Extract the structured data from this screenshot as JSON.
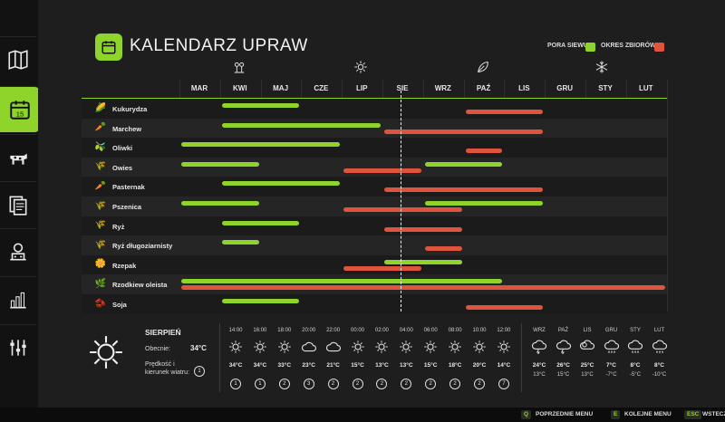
{
  "title": "KALENDARZ UPRAW",
  "legend": {
    "sow": "PORA SIEWU",
    "harvest": "OKRES ZBIORÓW",
    "sow_color": "#8fd42a",
    "harvest_color": "#e0533c"
  },
  "months": [
    "MAR",
    "KWI",
    "MAJ",
    "CZE",
    "LIP",
    "SIE",
    "WRZ",
    "PAŹ",
    "LIS",
    "GRU",
    "STY",
    "LUT"
  ],
  "seasons": [
    "spring-flower-icon",
    "summer-sun-icon",
    "autumn-leaf-icon",
    "winter-snowflake-icon"
  ],
  "crops": [
    {
      "name": "Kukurydza",
      "icon": "corn-icon",
      "glyph": "🌽",
      "sow": [
        [
          2,
          3
        ]
      ],
      "harvest": [
        [
          8,
          9
        ]
      ]
    },
    {
      "name": "Marchew",
      "icon": "carrot-icon",
      "glyph": "🥕",
      "sow": [
        [
          2,
          5
        ]
      ],
      "harvest": [
        [
          6,
          9
        ]
      ]
    },
    {
      "name": "Oliwki",
      "icon": "olive-icon",
      "glyph": "🫒",
      "sow": [
        [
          1,
          4
        ]
      ],
      "harvest": [
        [
          8,
          8
        ]
      ]
    },
    {
      "name": "Owies",
      "icon": "oat-icon",
      "glyph": "🌾",
      "sow": [
        [
          1,
          2
        ],
        [
          7,
          8
        ]
      ],
      "harvest": [
        [
          5,
          6
        ]
      ]
    },
    {
      "name": "Pasternak",
      "icon": "parsnip-icon",
      "glyph": "🥕",
      "sow": [
        [
          2,
          4
        ]
      ],
      "harvest": [
        [
          6,
          9
        ]
      ]
    },
    {
      "name": "Pszenica",
      "icon": "wheat-icon",
      "glyph": "🌾",
      "sow": [
        [
          1,
          2
        ],
        [
          7,
          9
        ]
      ],
      "harvest": [
        [
          5,
          7
        ]
      ]
    },
    {
      "name": "Ryż",
      "icon": "rice-icon",
      "glyph": "🌾",
      "sow": [
        [
          2,
          3
        ]
      ],
      "harvest": [
        [
          6,
          7
        ]
      ]
    },
    {
      "name": "Ryż długoziarnisty",
      "icon": "long-grain-rice-icon",
      "glyph": "🌾",
      "sow": [
        [
          2,
          2
        ]
      ],
      "harvest": [
        [
          7,
          7
        ]
      ]
    },
    {
      "name": "Rzepak",
      "icon": "canola-icon",
      "glyph": "🌼",
      "sow": [
        [
          6,
          7
        ]
      ],
      "harvest": [
        [
          5,
          6
        ]
      ]
    },
    {
      "name": "Rzodkiew oleista",
      "icon": "oilseed-radish-icon",
      "glyph": "🌿",
      "sow": [
        [
          1,
          8
        ]
      ],
      "harvest": [
        [
          1,
          12
        ]
      ]
    },
    {
      "name": "Soja",
      "icon": "soybean-icon",
      "glyph": "🫘",
      "sow": [
        [
          2,
          3
        ]
      ],
      "harvest": [
        [
          8,
          9
        ]
      ]
    }
  ],
  "weather": {
    "month": "SIERPIEŃ",
    "current_label": "Obecnie:",
    "current_value": "34°C",
    "wind_label": "Prędkość i kierunek wiatru:",
    "wind_value": "1",
    "hours": [
      {
        "time": "14:00",
        "icon": "sun-icon",
        "temp": "34°C",
        "wind": "1"
      },
      {
        "time": "16:00",
        "icon": "sun-icon",
        "temp": "34°C",
        "wind": "1"
      },
      {
        "time": "18:00",
        "icon": "sun-icon",
        "temp": "33°C",
        "wind": "2"
      },
      {
        "time": "20:00",
        "icon": "cloud-icon",
        "temp": "23°C",
        "wind": "3"
      },
      {
        "time": "22:00",
        "icon": "cloud-icon",
        "temp": "21°C",
        "wind": "2"
      },
      {
        "time": "00:00",
        "icon": "sun-icon",
        "temp": "15°C",
        "wind": "2"
      },
      {
        "time": "02:00",
        "icon": "sun-icon",
        "temp": "13°C",
        "wind": "2"
      },
      {
        "time": "04:00",
        "icon": "sun-icon",
        "temp": "13°C",
        "wind": "2"
      },
      {
        "time": "06:00",
        "icon": "sun-icon",
        "temp": "15°C",
        "wind": "2"
      },
      {
        "time": "08:00",
        "icon": "sun-icon",
        "temp": "18°C",
        "wind": "2"
      },
      {
        "time": "10:00",
        "icon": "sun-icon",
        "temp": "20°C",
        "wind": "2"
      },
      {
        "time": "12:00",
        "icon": "sun-icon",
        "temp": "14°C",
        "wind": "7"
      }
    ],
    "forecast": [
      {
        "month": "WRZ",
        "icon": "storm-cloud-icon",
        "high": "24°C",
        "low": "13°C"
      },
      {
        "month": "PAŹ",
        "icon": "storm-cloud-icon",
        "high": "26°C",
        "low": "15°C"
      },
      {
        "month": "LIS",
        "icon": "partly-cloudy-icon",
        "high": "25°C",
        "low": "13°C"
      },
      {
        "month": "GRU",
        "icon": "snow-cloud-icon",
        "high": "7°C",
        "low": "-7°C"
      },
      {
        "month": "STY",
        "icon": "snow-cloud-icon",
        "high": "8°C",
        "low": "-5°C"
      },
      {
        "month": "LUT",
        "icon": "snow-cloud-icon",
        "high": "8°C",
        "low": "-10°C"
      }
    ]
  },
  "footer": [
    {
      "key": "Q",
      "label": "POPRZEDNIE MENU"
    },
    {
      "key": "E",
      "label": "KOLEJNE MENU"
    },
    {
      "key": "ESC",
      "label": "WSTECZ"
    }
  ]
}
